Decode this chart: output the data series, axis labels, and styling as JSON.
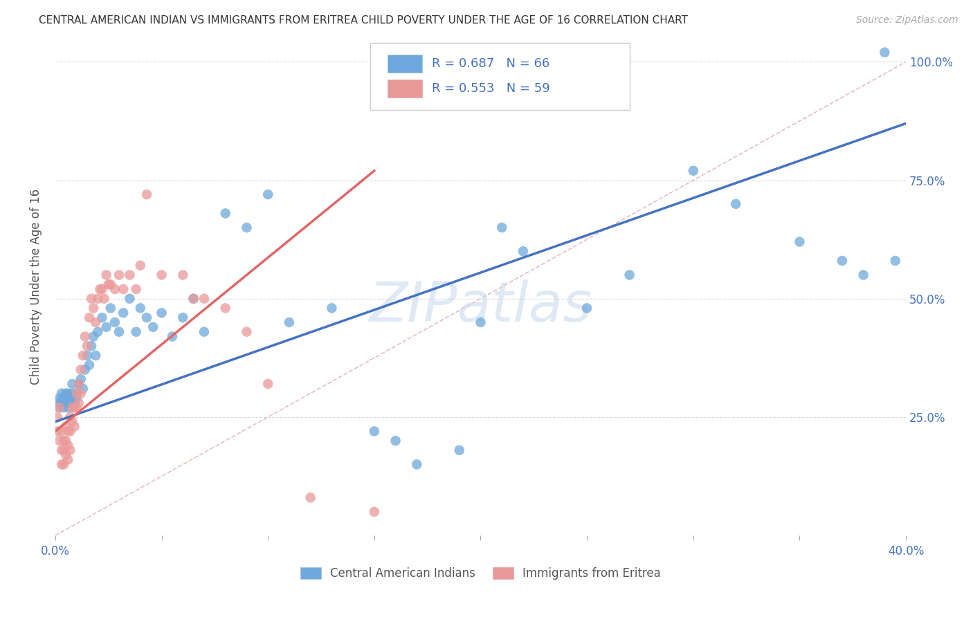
{
  "title": "CENTRAL AMERICAN INDIAN VS IMMIGRANTS FROM ERITREA CHILD POVERTY UNDER THE AGE OF 16 CORRELATION CHART",
  "source": "Source: ZipAtlas.com",
  "ylabel": "Child Poverty Under the Age of 16",
  "xlim": [
    0.0,
    0.4
  ],
  "ylim": [
    0.0,
    1.05
  ],
  "blue_color": "#6fa8dc",
  "pink_color": "#ea9999",
  "blue_line_color": "#4472c4",
  "pink_line_color": "#e06666",
  "diagonal_color": "#e8b4b8",
  "watermark": "ZIPatlas",
  "background_color": "#ffffff",
  "grid_color": "#d9d9d9",
  "blue_x": [
    0.001,
    0.002,
    0.002,
    0.003,
    0.003,
    0.004,
    0.004,
    0.005,
    0.005,
    0.006,
    0.006,
    0.007,
    0.007,
    0.008,
    0.008,
    0.009,
    0.009,
    0.01,
    0.01,
    0.011,
    0.012,
    0.013,
    0.014,
    0.015,
    0.016,
    0.017,
    0.018,
    0.019,
    0.02,
    0.022,
    0.024,
    0.026,
    0.028,
    0.03,
    0.032,
    0.035,
    0.038,
    0.04,
    0.043,
    0.046,
    0.05,
    0.055,
    0.06,
    0.065,
    0.07,
    0.08,
    0.09,
    0.1,
    0.11,
    0.13,
    0.15,
    0.16,
    0.17,
    0.19,
    0.2,
    0.21,
    0.22,
    0.25,
    0.27,
    0.3,
    0.32,
    0.35,
    0.37,
    0.38,
    0.39,
    0.395
  ],
  "blue_y": [
    0.28,
    0.29,
    0.27,
    0.3,
    0.28,
    0.27,
    0.29,
    0.3,
    0.28,
    0.27,
    0.3,
    0.29,
    0.28,
    0.32,
    0.3,
    0.29,
    0.28,
    0.3,
    0.29,
    0.32,
    0.33,
    0.31,
    0.35,
    0.38,
    0.36,
    0.4,
    0.42,
    0.38,
    0.43,
    0.46,
    0.44,
    0.48,
    0.45,
    0.43,
    0.47,
    0.5,
    0.43,
    0.48,
    0.46,
    0.44,
    0.47,
    0.42,
    0.46,
    0.5,
    0.43,
    0.68,
    0.65,
    0.72,
    0.45,
    0.48,
    0.22,
    0.2,
    0.15,
    0.18,
    0.45,
    0.65,
    0.6,
    0.48,
    0.55,
    0.77,
    0.7,
    0.62,
    0.58,
    0.55,
    1.02,
    0.58
  ],
  "pink_x": [
    0.001,
    0.001,
    0.002,
    0.002,
    0.003,
    0.003,
    0.003,
    0.004,
    0.004,
    0.004,
    0.005,
    0.005,
    0.005,
    0.006,
    0.006,
    0.006,
    0.007,
    0.007,
    0.007,
    0.008,
    0.008,
    0.009,
    0.009,
    0.01,
    0.01,
    0.011,
    0.011,
    0.012,
    0.012,
    0.013,
    0.014,
    0.015,
    0.016,
    0.017,
    0.018,
    0.019,
    0.02,
    0.021,
    0.022,
    0.023,
    0.024,
    0.025,
    0.026,
    0.028,
    0.03,
    0.032,
    0.035,
    0.038,
    0.04,
    0.043,
    0.05,
    0.06,
    0.065,
    0.07,
    0.08,
    0.09,
    0.1,
    0.12,
    0.15
  ],
  "pink_y": [
    0.25,
    0.22,
    0.27,
    0.2,
    0.22,
    0.18,
    0.15,
    0.2,
    0.18,
    0.15,
    0.23,
    0.2,
    0.17,
    0.22,
    0.19,
    0.16,
    0.25,
    0.22,
    0.18,
    0.27,
    0.24,
    0.27,
    0.23,
    0.3,
    0.27,
    0.32,
    0.28,
    0.35,
    0.3,
    0.38,
    0.42,
    0.4,
    0.46,
    0.5,
    0.48,
    0.45,
    0.5,
    0.52,
    0.52,
    0.5,
    0.55,
    0.53,
    0.53,
    0.52,
    0.55,
    0.52,
    0.55,
    0.52,
    0.57,
    0.72,
    0.55,
    0.55,
    0.5,
    0.5,
    0.48,
    0.43,
    0.32,
    0.08,
    0.05
  ],
  "blue_trend": [
    0.0,
    0.4,
    0.24,
    0.87
  ],
  "pink_trend": [
    0.0,
    0.15,
    0.22,
    0.77
  ]
}
